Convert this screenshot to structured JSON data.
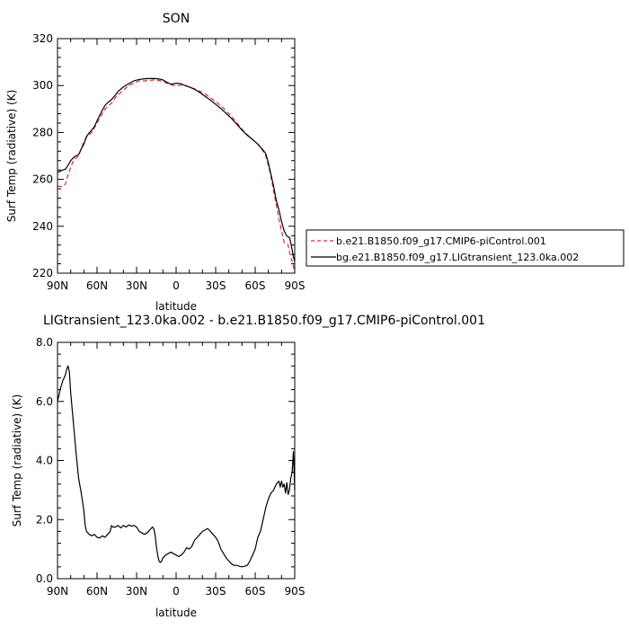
{
  "chart_data": [
    {
      "type": "line",
      "title": "SON",
      "xlabel": "latitude",
      "ylabel": "Surf Temp (radiative) (K)",
      "xlim": [
        90,
        -90
      ],
      "ylim": [
        220,
        320
      ],
      "x_ticks": [
        90,
        60,
        30,
        0,
        -30,
        -60,
        -90
      ],
      "x_tick_labels": [
        "90N",
        "60N",
        "30N",
        "0",
        "30S",
        "60S",
        "90S"
      ],
      "y_ticks": [
        220,
        240,
        260,
        280,
        300,
        320
      ],
      "y_tick_labels": [
        "220",
        "240",
        "260",
        "280",
        "300",
        "320"
      ],
      "legend": "right",
      "series": [
        {
          "name": "b.e21.B1850.f09_g17.CMIP6-piControl.001",
          "color": "#e8262a",
          "dash": "dashed",
          "points": [
            [
              90,
              257
            ],
            [
              86,
              257
            ],
            [
              84,
              258
            ],
            [
              82,
              262
            ],
            [
              80,
              265
            ],
            [
              78,
              268
            ],
            [
              76,
              269
            ],
            [
              74,
              270
            ],
            [
              72,
              273
            ],
            [
              70,
              276
            ],
            [
              68,
              278
            ],
            [
              66,
              279
            ],
            [
              64,
              280
            ],
            [
              62,
              282
            ],
            [
              60,
              284
            ],
            [
              58,
              286
            ],
            [
              56,
              288
            ],
            [
              54,
              290
            ],
            [
              52,
              291
            ],
            [
              50,
              292
            ],
            [
              48,
              293
            ],
            [
              46,
              295
            ],
            [
              44,
              296
            ],
            [
              40,
              298
            ],
            [
              36,
              300
            ],
            [
              32,
              301
            ],
            [
              28,
              302
            ],
            [
              24,
              302
            ],
            [
              20,
              302.2
            ],
            [
              16,
              302.5
            ],
            [
              12,
              302
            ],
            [
              10,
              301.7
            ],
            [
              8,
              301.2
            ],
            [
              6,
              300.8
            ],
            [
              4,
              300.3
            ],
            [
              2,
              300
            ],
            [
              0,
              300
            ],
            [
              -2,
              300
            ],
            [
              -4,
              300.1
            ],
            [
              -6,
              300
            ],
            [
              -8,
              299.7
            ],
            [
              -10,
              299.4
            ],
            [
              -14,
              298.6
            ],
            [
              -18,
              297.6
            ],
            [
              -22,
              296.4
            ],
            [
              -26,
              294.8
            ],
            [
              -30,
              293.2
            ],
            [
              -34,
              291.4
            ],
            [
              -38,
              289.2
            ],
            [
              -42,
              286.8
            ],
            [
              -46,
              284.2
            ],
            [
              -50,
              281.4
            ],
            [
              -54,
              279
            ],
            [
              -58,
              277
            ],
            [
              -62,
              275
            ],
            [
              -66,
              272
            ],
            [
              -68,
              270
            ],
            [
              -70,
              266
            ],
            [
              -72,
              261
            ],
            [
              -74,
              255
            ],
            [
              -76,
              249
            ],
            [
              -78,
              243
            ],
            [
              -80,
              238
            ],
            [
              -82,
              233
            ],
            [
              -84,
              232.5
            ],
            [
              -85,
              232
            ],
            [
              -86,
              229
            ],
            [
              -87,
              227
            ],
            [
              -88,
              225
            ],
            [
              -89,
              223
            ],
            [
              -90,
              220
            ]
          ]
        },
        {
          "name": "bg.e21.B1850.f09_g17.LIGtransient_123.0ka.002",
          "color": "#000000",
          "dash": "solid",
          "points": [
            [
              90,
              263
            ],
            [
              86,
              264
            ],
            [
              84,
              264.3
            ],
            [
              82,
              266
            ],
            [
              80,
              268
            ],
            [
              78,
              269.2
            ],
            [
              76,
              270
            ],
            [
              74,
              270.5
            ],
            [
              72,
              273
            ],
            [
              70,
              275
            ],
            [
              68,
              278.3
            ],
            [
              66,
              279.8
            ],
            [
              64,
              281
            ],
            [
              62,
              282.5
            ],
            [
              60,
              285
            ],
            [
              58,
              287.3
            ],
            [
              56,
              289.5
            ],
            [
              54,
              291.5
            ],
            [
              52,
              292.7
            ],
            [
              50,
              293.5
            ],
            [
              48,
              294.7
            ],
            [
              46,
              296
            ],
            [
              44,
              297.5
            ],
            [
              40,
              299.4
            ],
            [
              36,
              300.8
            ],
            [
              32,
              302
            ],
            [
              28,
              302.6
            ],
            [
              24,
              302.9
            ],
            [
              20,
              303
            ],
            [
              16,
              303
            ],
            [
              12,
              302.7
            ],
            [
              10,
              302.4
            ],
            [
              8,
              301.7
            ],
            [
              6,
              301.1
            ],
            [
              4,
              300.6
            ],
            [
              2,
              300.7
            ],
            [
              0,
              301
            ],
            [
              -2,
              300.9
            ],
            [
              -4,
              300.7
            ],
            [
              -6,
              300.2
            ],
            [
              -8,
              299.8
            ],
            [
              -10,
              299.4
            ],
            [
              -14,
              298.4
            ],
            [
              -18,
              297
            ],
            [
              -22,
              295.4
            ],
            [
              -26,
              293.8
            ],
            [
              -30,
              292
            ],
            [
              -34,
              290.2
            ],
            [
              -38,
              288.1
            ],
            [
              -42,
              286
            ],
            [
              -46,
              283.5
            ],
            [
              -50,
              281
            ],
            [
              -54,
              278.8
            ],
            [
              -58,
              277
            ],
            [
              -62,
              275
            ],
            [
              -66,
              272.5
            ],
            [
              -68,
              271
            ],
            [
              -70,
              267
            ],
            [
              -72,
              262
            ],
            [
              -74,
              257
            ],
            [
              -76,
              251
            ],
            [
              -78,
              247
            ],
            [
              -80,
              242
            ],
            [
              -82,
              238
            ],
            [
              -84,
              235.8
            ],
            [
              -86,
              235.2
            ],
            [
              -87,
              233
            ],
            [
              -88,
              230
            ],
            [
              -89,
              227
            ],
            [
              -90,
              225
            ]
          ]
        }
      ]
    },
    {
      "type": "line",
      "title": "LIGtransient_123.0ka.002 - b.e21.B1850.f09_g17.CMIP6-piControl.001",
      "xlabel": "latitude",
      "ylabel": "Surf Temp (radiative) (K)",
      "xlim": [
        90,
        -90
      ],
      "ylim": [
        0,
        8
      ],
      "x_ticks": [
        90,
        60,
        30,
        0,
        -30,
        -60,
        -90
      ],
      "x_tick_labels": [
        "90N",
        "60N",
        "30N",
        "0",
        "30S",
        "60S",
        "90S"
      ],
      "y_ticks": [
        0,
        2,
        4,
        6,
        8
      ],
      "y_tick_labels": [
        "0.0",
        "2.0",
        "4.0",
        "6.0",
        "8.0"
      ],
      "series": [
        {
          "name": "",
          "color": "#000000",
          "dash": "solid",
          "points": [
            [
              90,
              6.0
            ],
            [
              88,
              6.4
            ],
            [
              86,
              6.7
            ],
            [
              84,
              6.9
            ],
            [
              83,
              7.1
            ],
            [
              82,
              7.2
            ],
            [
              81,
              7.0
            ],
            [
              80,
              6.3
            ],
            [
              78,
              5.3
            ],
            [
              76,
              4.3
            ],
            [
              74,
              3.4
            ],
            [
              72,
              2.9
            ],
            [
              70,
              2.3
            ],
            [
              69,
              1.8
            ],
            [
              68,
              1.6
            ],
            [
              66,
              1.5
            ],
            [
              64,
              1.45
            ],
            [
              62,
              1.5
            ],
            [
              60,
              1.4
            ],
            [
              58,
              1.38
            ],
            [
              56,
              1.45
            ],
            [
              54,
              1.4
            ],
            [
              52,
              1.5
            ],
            [
              50,
              1.6
            ],
            [
              49,
              1.8
            ],
            [
              48,
              1.75
            ],
            [
              46,
              1.75
            ],
            [
              44,
              1.8
            ],
            [
              42,
              1.72
            ],
            [
              40,
              1.8
            ],
            [
              38,
              1.75
            ],
            [
              36,
              1.82
            ],
            [
              34,
              1.78
            ],
            [
              32,
              1.8
            ],
            [
              30,
              1.75
            ],
            [
              28,
              1.6
            ],
            [
              26,
              1.55
            ],
            [
              24,
              1.5
            ],
            [
              22,
              1.55
            ],
            [
              20,
              1.65
            ],
            [
              18,
              1.75
            ],
            [
              17,
              1.7
            ],
            [
              16,
              1.5
            ],
            [
              15,
              1.1
            ],
            [
              14,
              0.8
            ],
            [
              13,
              0.6
            ],
            [
              12,
              0.55
            ],
            [
              11,
              0.6
            ],
            [
              10,
              0.7
            ],
            [
              9,
              0.75
            ],
            [
              8,
              0.8
            ],
            [
              6,
              0.85
            ],
            [
              4,
              0.9
            ],
            [
              2,
              0.85
            ],
            [
              0,
              0.8
            ],
            [
              -2,
              0.75
            ],
            [
              -4,
              0.8
            ],
            [
              -6,
              0.9
            ],
            [
              -8,
              1.05
            ],
            [
              -10,
              1.0
            ],
            [
              -12,
              1.1
            ],
            [
              -14,
              1.3
            ],
            [
              -16,
              1.4
            ],
            [
              -18,
              1.5
            ],
            [
              -20,
              1.6
            ],
            [
              -22,
              1.65
            ],
            [
              -24,
              1.7
            ],
            [
              -26,
              1.6
            ],
            [
              -28,
              1.5
            ],
            [
              -30,
              1.4
            ],
            [
              -32,
              1.25
            ],
            [
              -34,
              1.0
            ],
            [
              -36,
              0.85
            ],
            [
              -38,
              0.7
            ],
            [
              -40,
              0.6
            ],
            [
              -42,
              0.5
            ],
            [
              -44,
              0.45
            ],
            [
              -46,
              0.45
            ],
            [
              -48,
              0.42
            ],
            [
              -50,
              0.4
            ],
            [
              -52,
              0.42
            ],
            [
              -54,
              0.45
            ],
            [
              -56,
              0.6
            ],
            [
              -58,
              0.8
            ],
            [
              -60,
              1.0
            ],
            [
              -62,
              1.4
            ],
            [
              -64,
              1.6
            ],
            [
              -66,
              2.0
            ],
            [
              -68,
              2.4
            ],
            [
              -70,
              2.7
            ],
            [
              -72,
              2.9
            ],
            [
              -74,
              3.0
            ],
            [
              -76,
              3.2
            ],
            [
              -78,
              3.3
            ],
            [
              -79,
              3.1
            ],
            [
              -80,
              3.3
            ],
            [
              -81,
              3.1
            ],
            [
              -82,
              3.2
            ],
            [
              -83,
              2.9
            ],
            [
              -84,
              3.25
            ],
            [
              -85,
              2.85
            ],
            [
              -86,
              3.0
            ],
            [
              -87,
              3.4
            ],
            [
              -88,
              3.6
            ],
            [
              -89,
              4.3
            ],
            [
              -90,
              3.0
            ]
          ]
        }
      ]
    }
  ]
}
